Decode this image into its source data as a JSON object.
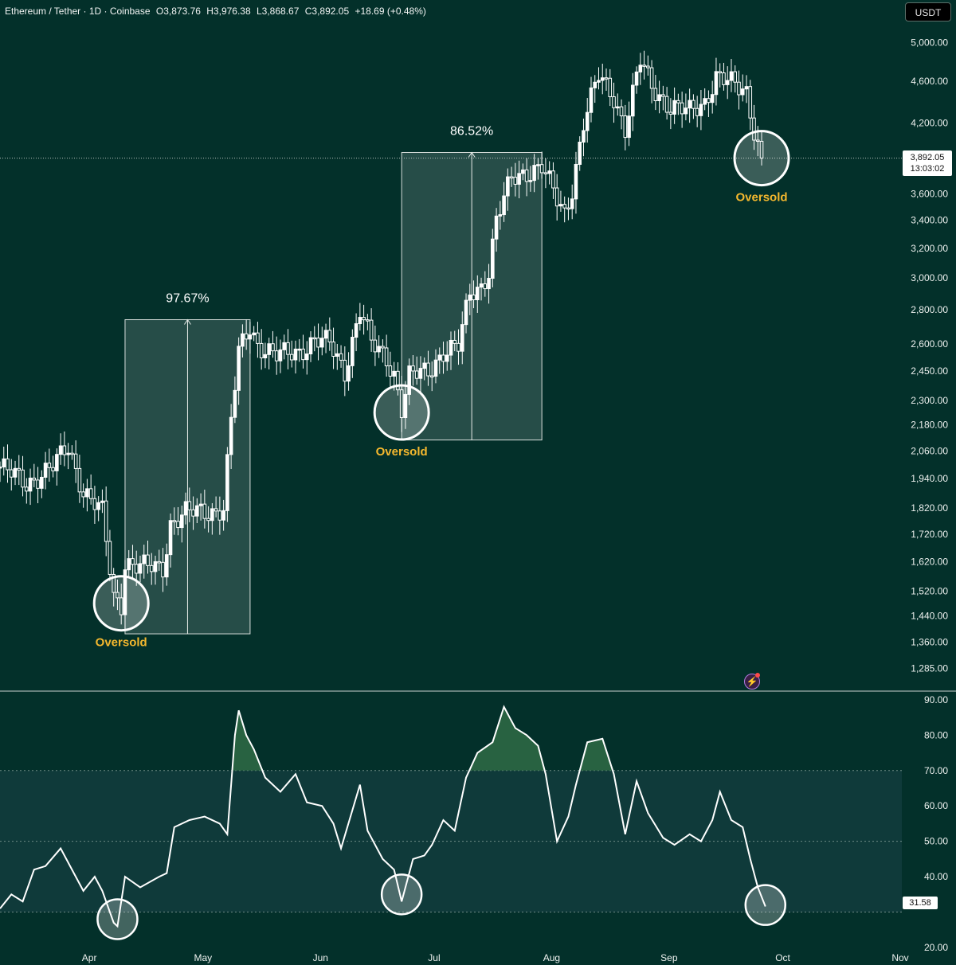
{
  "header": {
    "symbol": "Ethereum / Tether · 1D · Coinbase",
    "open": "O3,873.76",
    "high": "H3,976.38",
    "low": "L3,868.67",
    "close": "C3,892.05",
    "change": "+18.69 (+0.48%)"
  },
  "currency_button": "USDT",
  "last_price": {
    "value": "3,892.05",
    "countdown": "13:03:02"
  },
  "rsi_last": "31.58",
  "colors": {
    "background": "#03302a",
    "candle": "#ffffff",
    "oversold_text": "#f5b82e",
    "rsi_band": "#0f3a3a",
    "rsi_overbought_fill": "#2f6b45"
  },
  "chart_data": [
    {
      "type": "candlestick",
      "title": "Ethereum / Tether · 1D · Coinbase",
      "y_scale": "log",
      "ylim": [
        1240,
        5120
      ],
      "price_ticks": [
        "5,000.00",
        "4,600.00",
        "4,200.00",
        "3,600.00",
        "3,400.00",
        "3,200.00",
        "3,000.00",
        "2,800.00",
        "2,600.00",
        "2,450.00",
        "2,300.00",
        "2,180.00",
        "2,060.00",
        "1,940.00",
        "1,820.00",
        "1,720.00",
        "1,620.00",
        "1,520.00",
        "1,440.00",
        "1,360.00",
        "1,285.00"
      ],
      "x_ticks": [
        "Apr",
        "May",
        "Jun",
        "Jul",
        "Aug",
        "Sep",
        "Oct",
        "Nov"
      ],
      "x_range": [
        "2025-03-08",
        "2025-11-01"
      ],
      "x_tick_dates": [
        "2025-04-01",
        "2025-05-01",
        "2025-06-01",
        "2025-07-01",
        "2025-08-01",
        "2025-09-01",
        "2025-10-01",
        "2025-11-01"
      ],
      "series": [
        {
          "name": "ETH/USDT",
          "close_path": [
            [
              "2025-03-08",
              1990
            ],
            [
              "2025-03-15",
              1920
            ],
            [
              "2025-03-22",
              1990
            ],
            [
              "2025-03-26",
              2080
            ],
            [
              "2025-03-30",
              1890
            ],
            [
              "2025-04-04",
              1800
            ],
            [
              "2025-04-07",
              1500
            ],
            [
              "2025-04-09",
              1480
            ],
            [
              "2025-04-10",
              1620
            ],
            [
              "2025-04-14",
              1600
            ],
            [
              "2025-04-20",
              1600
            ],
            [
              "2025-04-22",
              1760
            ],
            [
              "2025-04-26",
              1800
            ],
            [
              "2025-05-04",
              1810
            ],
            [
              "2025-05-06",
              1820
            ],
            [
              "2025-05-08",
              2200
            ],
            [
              "2025-05-10",
              2550
            ],
            [
              "2025-05-13",
              2700
            ],
            [
              "2025-05-15",
              2600
            ],
            [
              "2025-05-20",
              2530
            ],
            [
              "2025-05-26",
              2560
            ],
            [
              "2025-05-30",
              2620
            ],
            [
              "2025-06-03",
              2600
            ],
            [
              "2025-06-07",
              2450
            ],
            [
              "2025-06-11",
              2800
            ],
            [
              "2025-06-14",
              2600
            ],
            [
              "2025-06-18",
              2520
            ],
            [
              "2025-06-20",
              2440
            ],
            [
              "2025-06-22",
              2260
            ],
            [
              "2025-06-24",
              2420
            ],
            [
              "2025-06-29",
              2450
            ],
            [
              "2025-07-03",
              2560
            ],
            [
              "2025-07-07",
              2580
            ],
            [
              "2025-07-10",
              2900
            ],
            [
              "2025-07-13",
              2950
            ],
            [
              "2025-07-15",
              3050
            ],
            [
              "2025-07-17",
              3400
            ],
            [
              "2025-07-21",
              3720
            ],
            [
              "2025-07-25",
              3780
            ],
            [
              "2025-07-29",
              3820
            ],
            [
              "2025-08-02",
              3550
            ],
            [
              "2025-08-04",
              3450
            ],
            [
              "2025-08-06",
              3650
            ],
            [
              "2025-08-09",
              4200
            ],
            [
              "2025-08-13",
              4650
            ],
            [
              "2025-08-17",
              4450
            ],
            [
              "2025-08-20",
              4150
            ],
            [
              "2025-08-24",
              4800
            ],
            [
              "2025-08-27",
              4550
            ],
            [
              "2025-09-01",
              4350
            ],
            [
              "2025-09-06",
              4300
            ],
            [
              "2025-09-10",
              4400
            ],
            [
              "2025-09-13",
              4650
            ],
            [
              "2025-09-18",
              4550
            ],
            [
              "2025-09-21",
              4500
            ],
            [
              "2025-09-23",
              4150
            ],
            [
              "2025-09-25",
              3892.05
            ]
          ]
        }
      ],
      "annotations": [
        {
          "type": "range",
          "label": "97.67%",
          "from": [
            "2025-04-10",
            1385
          ],
          "to": [
            "2025-05-13",
            2740
          ]
        },
        {
          "type": "range",
          "label": "86.52%",
          "from": [
            "2025-06-22",
            2110
          ],
          "to": [
            "2025-07-29",
            3940
          ]
        },
        {
          "type": "circle",
          "label": "Oversold",
          "at": [
            "2025-04-09",
            1480
          ]
        },
        {
          "type": "circle",
          "label": "Oversold",
          "at": [
            "2025-06-22",
            2240
          ]
        },
        {
          "type": "circle",
          "label": "Oversold",
          "at": [
            "2025-09-25",
            3892.05
          ]
        }
      ],
      "last_price_line": 3892.05
    },
    {
      "type": "line",
      "title": "",
      "ylim": [
        20,
        92
      ],
      "y_ticks": [
        "90.00",
        "80.00",
        "70.00",
        "60.00",
        "50.00",
        "40.00",
        "20.00"
      ],
      "bands": {
        "upper": 70,
        "middle": 50,
        "lower": 30
      },
      "series": [
        {
          "values": [
            [
              "2025-03-08",
              31
            ],
            [
              "2025-03-11",
              35
            ],
            [
              "2025-03-14",
              33
            ],
            [
              "2025-03-17",
              42
            ],
            [
              "2025-03-20",
              43
            ],
            [
              "2025-03-24",
              48
            ],
            [
              "2025-03-27",
              42
            ],
            [
              "2025-03-30",
              36
            ],
            [
              "2025-04-02",
              40
            ],
            [
              "2025-04-04",
              36
            ],
            [
              "2025-04-07",
              27
            ],
            [
              "2025-04-08",
              26
            ],
            [
              "2025-04-10",
              40
            ],
            [
              "2025-04-14",
              37
            ],
            [
              "2025-04-19",
              40
            ],
            [
              "2025-04-21",
              41
            ],
            [
              "2025-04-23",
              54
            ],
            [
              "2025-04-27",
              56
            ],
            [
              "2025-05-01",
              57
            ],
            [
              "2025-05-05",
              55
            ],
            [
              "2025-05-07",
              52
            ],
            [
              "2025-05-09",
              80
            ],
            [
              "2025-05-10",
              87
            ],
            [
              "2025-05-12",
              80
            ],
            [
              "2025-05-14",
              76
            ],
            [
              "2025-05-17",
              68
            ],
            [
              "2025-05-21",
              64
            ],
            [
              "2025-05-25",
              69
            ],
            [
              "2025-05-28",
              61
            ],
            [
              "2025-06-01",
              60
            ],
            [
              "2025-06-04",
              55
            ],
            [
              "2025-06-06",
              48
            ],
            [
              "2025-06-11",
              66
            ],
            [
              "2025-06-13",
              53
            ],
            [
              "2025-06-17",
              45
            ],
            [
              "2025-06-20",
              42
            ],
            [
              "2025-06-22",
              33
            ],
            [
              "2025-06-25",
              45
            ],
            [
              "2025-06-28",
              46
            ],
            [
              "2025-06-30",
              49
            ],
            [
              "2025-07-03",
              56
            ],
            [
              "2025-07-06",
              53
            ],
            [
              "2025-07-09",
              68
            ],
            [
              "2025-07-12",
              75
            ],
            [
              "2025-07-16",
              78
            ],
            [
              "2025-07-19",
              88
            ],
            [
              "2025-07-22",
              82
            ],
            [
              "2025-07-25",
              80
            ],
            [
              "2025-07-28",
              77
            ],
            [
              "2025-07-30",
              69
            ],
            [
              "2025-08-02",
              50
            ],
            [
              "2025-08-05",
              57
            ],
            [
              "2025-08-07",
              66
            ],
            [
              "2025-08-10",
              78
            ],
            [
              "2025-08-14",
              79
            ],
            [
              "2025-08-17",
              69
            ],
            [
              "2025-08-20",
              52
            ],
            [
              "2025-08-23",
              67
            ],
            [
              "2025-08-26",
              58
            ],
            [
              "2025-08-30",
              51
            ],
            [
              "2025-09-02",
              49
            ],
            [
              "2025-09-06",
              52
            ],
            [
              "2025-09-09",
              50
            ],
            [
              "2025-09-12",
              56
            ],
            [
              "2025-09-14",
              64
            ],
            [
              "2025-09-17",
              56
            ],
            [
              "2025-09-20",
              54
            ],
            [
              "2025-09-22",
              45
            ],
            [
              "2025-09-24",
              37
            ],
            [
              "2025-09-26",
              31.58
            ]
          ]
        }
      ],
      "annotations": [
        {
          "type": "circle",
          "at": [
            "2025-04-08",
            28
          ]
        },
        {
          "type": "circle",
          "at": [
            "2025-06-22",
            35
          ]
        },
        {
          "type": "circle",
          "at": [
            "2025-09-26",
            32
          ]
        }
      ]
    }
  ]
}
